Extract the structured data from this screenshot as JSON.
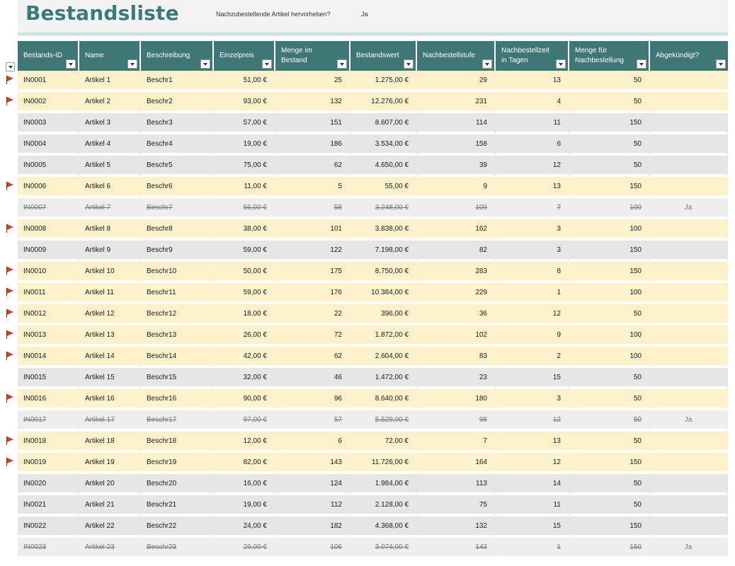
{
  "sheet": {
    "title": "Bestandsliste",
    "highlight_label": "Nachzubestellende Artikel hervorheben?",
    "highlight_value": "Ja"
  },
  "columns": [
    "Bestands-ID",
    "Name",
    "Beschreibung",
    "Einzelpreis",
    "Menge im Bestand",
    "Bestandswert",
    "Nachbestellstufe",
    "Nachbestellzeit in Tagen",
    "Menge für Nachbestellung",
    "Abgekündigt?"
  ],
  "icons": {
    "reorder_flag": "flag-icon",
    "filter_dropdown": "chevron-down-icon"
  },
  "colors": {
    "header": "#3f7776",
    "reorder_row": "#fdf1cc",
    "normal_row": "#e6e6e6",
    "flag": "#c8412b",
    "title": "#3a7a78"
  },
  "rows": [
    {
      "id": "IN0001",
      "name": "Artikel 1",
      "desc": "Beschr1",
      "price": "51,00 €",
      "qty": "25",
      "value": "1.275,00 €",
      "level": "29",
      "days": "13",
      "reorder_qty": "50",
      "discontinued": "",
      "flag": true
    },
    {
      "id": "IN0002",
      "name": "Artikel 2",
      "desc": "Beschr2",
      "price": "93,00 €",
      "qty": "132",
      "value": "12.276,00 €",
      "level": "231",
      "days": "4",
      "reorder_qty": "50",
      "discontinued": "",
      "flag": true
    },
    {
      "id": "IN0003",
      "name": "Artikel 3",
      "desc": "Beschr3",
      "price": "57,00 €",
      "qty": "151",
      "value": "8.607,00 €",
      "level": "114",
      "days": "11",
      "reorder_qty": "150",
      "discontinued": "",
      "flag": false
    },
    {
      "id": "IN0004",
      "name": "Artikel 4",
      "desc": "Beschr4",
      "price": "19,00 €",
      "qty": "186",
      "value": "3.534,00 €",
      "level": "158",
      "days": "6",
      "reorder_qty": "50",
      "discontinued": "",
      "flag": false
    },
    {
      "id": "IN0005",
      "name": "Artikel 5",
      "desc": "Beschr5",
      "price": "75,00 €",
      "qty": "62",
      "value": "4.650,00 €",
      "level": "39",
      "days": "12",
      "reorder_qty": "50",
      "discontinued": "",
      "flag": false
    },
    {
      "id": "IN0006",
      "name": "Artikel 6",
      "desc": "Beschr6",
      "price": "11,00 €",
      "qty": "5",
      "value": "55,00 €",
      "level": "9",
      "days": "13",
      "reorder_qty": "150",
      "discontinued": "",
      "flag": true
    },
    {
      "id": "IN0007",
      "name": "Artikel 7",
      "desc": "Beschr7",
      "price": "56,00 €",
      "qty": "58",
      "value": "3.248,00 €",
      "level": "109",
      "days": "7",
      "reorder_qty": "100",
      "discontinued": "Ja",
      "flag": false
    },
    {
      "id": "IN0008",
      "name": "Artikel 8",
      "desc": "Beschr8",
      "price": "38,00 €",
      "qty": "101",
      "value": "3.838,00 €",
      "level": "162",
      "days": "3",
      "reorder_qty": "100",
      "discontinued": "",
      "flag": true
    },
    {
      "id": "IN0009",
      "name": "Artikel 9",
      "desc": "Beschr9",
      "price": "59,00 €",
      "qty": "122",
      "value": "7.198,00 €",
      "level": "82",
      "days": "3",
      "reorder_qty": "150",
      "discontinued": "",
      "flag": false
    },
    {
      "id": "IN0010",
      "name": "Artikel 10",
      "desc": "Beschr10",
      "price": "50,00 €",
      "qty": "175",
      "value": "8.750,00 €",
      "level": "283",
      "days": "8",
      "reorder_qty": "150",
      "discontinued": "",
      "flag": true
    },
    {
      "id": "IN0011",
      "name": "Artikel 11",
      "desc": "Beschr11",
      "price": "59,00 €",
      "qty": "176",
      "value": "10.384,00 €",
      "level": "229",
      "days": "1",
      "reorder_qty": "100",
      "discontinued": "",
      "flag": true
    },
    {
      "id": "IN0012",
      "name": "Artikel 12",
      "desc": "Beschr12",
      "price": "18,00 €",
      "qty": "22",
      "value": "396,00 €",
      "level": "36",
      "days": "12",
      "reorder_qty": "50",
      "discontinued": "",
      "flag": true
    },
    {
      "id": "IN0013",
      "name": "Artikel 13",
      "desc": "Beschr13",
      "price": "26,00 €",
      "qty": "72",
      "value": "1.872,00 €",
      "level": "102",
      "days": "9",
      "reorder_qty": "100",
      "discontinued": "",
      "flag": true
    },
    {
      "id": "IN0014",
      "name": "Artikel 14",
      "desc": "Beschr14",
      "price": "42,00 €",
      "qty": "62",
      "value": "2.604,00 €",
      "level": "83",
      "days": "2",
      "reorder_qty": "100",
      "discontinued": "",
      "flag": true
    },
    {
      "id": "IN0015",
      "name": "Artikel 15",
      "desc": "Beschr15",
      "price": "32,00 €",
      "qty": "46",
      "value": "1.472,00 €",
      "level": "23",
      "days": "15",
      "reorder_qty": "50",
      "discontinued": "",
      "flag": false
    },
    {
      "id": "IN0016",
      "name": "Artikel 16",
      "desc": "Beschr16",
      "price": "90,00 €",
      "qty": "96",
      "value": "8.640,00 €",
      "level": "180",
      "days": "3",
      "reorder_qty": "50",
      "discontinued": "",
      "flag": true
    },
    {
      "id": "IN0017",
      "name": "Artikel 17",
      "desc": "Beschr17",
      "price": "97,00 €",
      "qty": "57",
      "value": "5.529,00 €",
      "level": "98",
      "days": "12",
      "reorder_qty": "50",
      "discontinued": "Ja",
      "flag": false
    },
    {
      "id": "IN0018",
      "name": "Artikel 18",
      "desc": "Beschr18",
      "price": "12,00 €",
      "qty": "6",
      "value": "72,00 €",
      "level": "7",
      "days": "13",
      "reorder_qty": "50",
      "discontinued": "",
      "flag": true
    },
    {
      "id": "IN0019",
      "name": "Artikel 19",
      "desc": "Beschr19",
      "price": "82,00 €",
      "qty": "143",
      "value": "11.726,00 €",
      "level": "164",
      "days": "12",
      "reorder_qty": "150",
      "discontinued": "",
      "flag": true
    },
    {
      "id": "IN0020",
      "name": "Artikel 20",
      "desc": "Beschr20",
      "price": "16,00 €",
      "qty": "124",
      "value": "1.984,00 €",
      "level": "113",
      "days": "14",
      "reorder_qty": "50",
      "discontinued": "",
      "flag": false
    },
    {
      "id": "IN0021",
      "name": "Artikel 21",
      "desc": "Beschr21",
      "price": "19,00 €",
      "qty": "112",
      "value": "2.128,00 €",
      "level": "75",
      "days": "11",
      "reorder_qty": "50",
      "discontinued": "",
      "flag": false
    },
    {
      "id": "IN0022",
      "name": "Artikel 22",
      "desc": "Beschr22",
      "price": "24,00 €",
      "qty": "182",
      "value": "4.368,00 €",
      "level": "132",
      "days": "15",
      "reorder_qty": "150",
      "discontinued": "",
      "flag": false
    },
    {
      "id": "IN0023",
      "name": "Artikel 23",
      "desc": "Beschr23",
      "price": "29,00 €",
      "qty": "106",
      "value": "3.074,00 €",
      "level": "143",
      "days": "1",
      "reorder_qty": "150",
      "discontinued": "Ja",
      "flag": false
    }
  ]
}
